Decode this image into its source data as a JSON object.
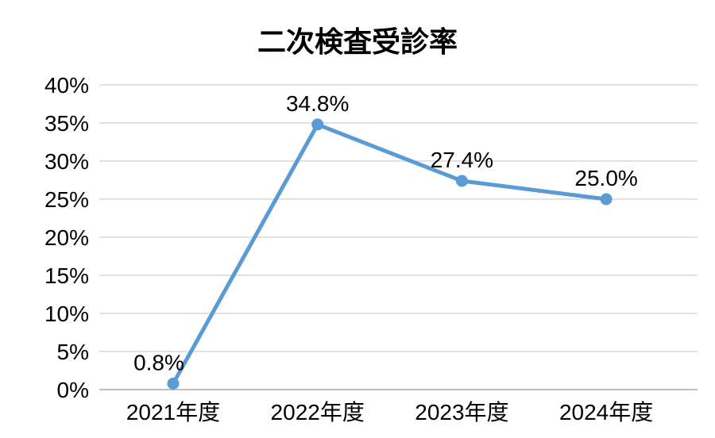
{
  "chart_data": {
    "type": "line",
    "title": "二次検査受診率",
    "categories": [
      "2021年度",
      "2022年度",
      "2023年度",
      "2024年度"
    ],
    "series": [
      {
        "name": "二次検査受診率",
        "values": [
          0.8,
          34.8,
          27.4,
          25.0
        ],
        "data_labels": [
          "0.8%",
          "34.8%",
          "27.4%",
          "25.0%"
        ],
        "color": "#5B9BD5"
      }
    ],
    "xlabel": "",
    "ylabel": "",
    "ylim": [
      0,
      40
    ],
    "y_ticks": [
      0,
      5,
      10,
      15,
      20,
      25,
      30,
      35,
      40
    ],
    "y_tick_labels": [
      "0%",
      "5%",
      "10%",
      "15%",
      "20%",
      "25%",
      "30%",
      "35%",
      "40%"
    ],
    "grid": true,
    "legend": "none",
    "marker": "circle",
    "colors": {
      "line": "#5B9BD5",
      "marker": "#5B9BD5",
      "gridline": "#D9D9D9",
      "axis_line": "#BFBFBF",
      "text": "#000000",
      "background": "#FFFFFF"
    }
  }
}
